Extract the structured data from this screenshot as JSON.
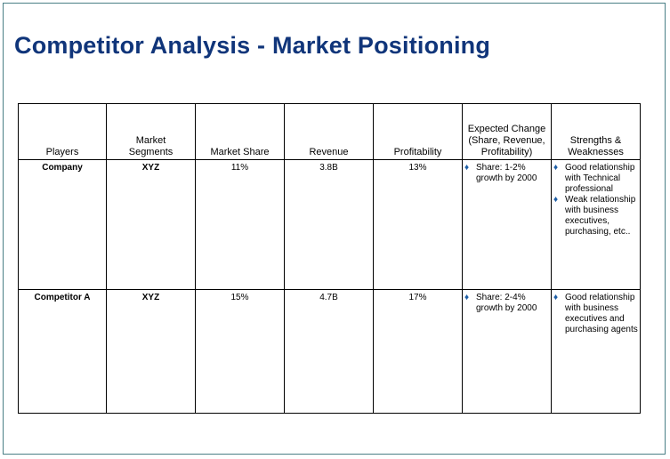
{
  "title": "Competitor Analysis - Market Positioning",
  "columns": [
    "Players",
    "Market Segments",
    "Market Share",
    "Revenue",
    "Profitability",
    "Expected Change (Share, Revenue, Profitability)",
    "Strengths & Weaknesses"
  ],
  "rows": [
    {
      "player": "Company",
      "segment": "XYZ",
      "share": "11%",
      "revenue": "3.8B",
      "profitability": "13%",
      "change": [
        "Share: 1-2% growth by 2000"
      ],
      "strengths": [
        "Good relationship with Technical professional",
        "Weak relationship with business executives, purchasing, etc.."
      ]
    },
    {
      "player": "Competitor A",
      "segment": "XYZ",
      "share": "15%",
      "revenue": "4.7B",
      "profitability": "17%",
      "change": [
        "Share: 2-4% growth by 2000"
      ],
      "strengths": [
        "Good relationship with business executives and purchasing agents"
      ]
    }
  ],
  "colors": {
    "title": "#10357a",
    "bullet": "#1f5fa6",
    "frame": "#4a7f86"
  },
  "icons": {
    "bullet": "bullet-dot-icon"
  }
}
